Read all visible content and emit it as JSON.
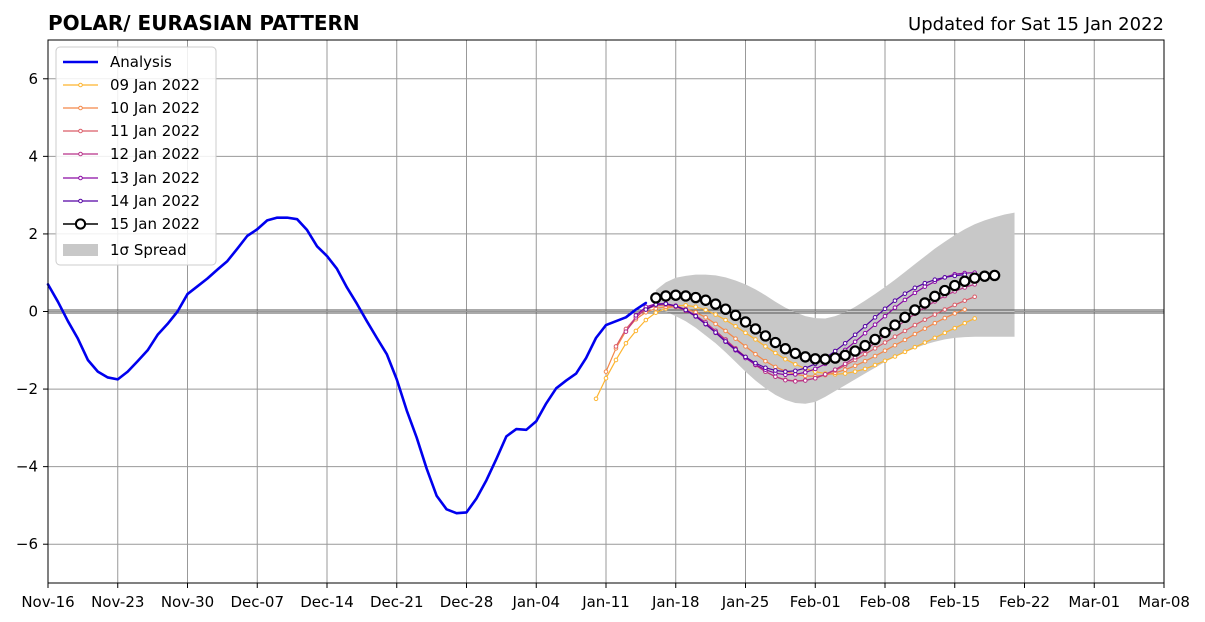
{
  "chart_data": {
    "type": "line",
    "title": "POLAR/ EURASIAN  PATTERN",
    "subtitle": "Updated for Sat 15 Jan 2022",
    "xlabel": "",
    "ylabel": "",
    "xlim": [
      "2021-11-16",
      "2022-03-08"
    ],
    "ylim": [
      -7,
      7
    ],
    "yticks": [
      -6,
      -4,
      -2,
      0,
      2,
      4,
      6
    ],
    "ytick_labels": [
      "−6",
      "−4",
      "−2",
      "0",
      "2",
      "4",
      "6"
    ],
    "xticks": [
      "2021-11-16",
      "2021-11-23",
      "2021-11-30",
      "2021-12-07",
      "2021-12-14",
      "2021-12-21",
      "2021-12-28",
      "2022-01-04",
      "2022-01-11",
      "2022-01-18",
      "2022-01-25",
      "2022-02-01",
      "2022-02-08",
      "2022-02-15",
      "2022-02-22",
      "2022-03-01",
      "2022-03-08"
    ],
    "xtick_labels": [
      "Nov-16",
      "Nov-23",
      "Nov-30",
      "Dec-07",
      "Dec-14",
      "Dec-21",
      "Dec-28",
      "Jan-04",
      "Jan-11",
      "Jan-18",
      "Jan-25",
      "Feb-01",
      "Feb-08",
      "Feb-15",
      "Feb-22",
      "Mar-01",
      "Mar-08"
    ],
    "grid": true,
    "legend_position": "top-left",
    "colors": {
      "analysis": "#0000ee",
      "spread": "#c8c8c8",
      "grid": "#999999",
      "zero_line": "#555555"
    },
    "legend": [
      {
        "label": "Analysis",
        "color": "#0000ee",
        "style": "thick"
      },
      {
        "label": "09 Jan 2022",
        "color": "#fdb42f",
        "style": "small-marker"
      },
      {
        "label": "10 Jan 2022",
        "color": "#f48849",
        "style": "small-marker"
      },
      {
        "label": "11 Jan 2022",
        "color": "#db5c68",
        "style": "small-marker"
      },
      {
        "label": "12 Jan 2022",
        "color": "#b83289",
        "style": "small-marker"
      },
      {
        "label": "13 Jan 2022",
        "color": "#8b0aa5",
        "style": "small-marker"
      },
      {
        "label": "14 Jan 2022",
        "color": "#5402a3",
        "style": "small-marker"
      },
      {
        "label": "15 Jan 2022",
        "color": "#000000",
        "style": "big-marker"
      },
      {
        "label": "1σ Spread",
        "color": "#c8c8c8",
        "style": "patch"
      }
    ],
    "analysis": {
      "name": "Analysis",
      "start": "2021-11-16",
      "values": [
        0.7,
        0.25,
        -0.25,
        -0.7,
        -1.25,
        -1.55,
        -1.7,
        -1.75,
        -1.55,
        -1.28,
        -1.0,
        -0.6,
        -0.32,
        0.0,
        0.45,
        0.65,
        0.85,
        1.08,
        1.3,
        1.62,
        1.95,
        2.12,
        2.35,
        2.42,
        2.42,
        2.38,
        2.1,
        1.68,
        1.43,
        1.1,
        0.62,
        0.2,
        -0.25,
        -0.68,
        -1.1,
        -1.75,
        -2.55,
        -3.25,
        -4.05,
        -4.75,
        -5.1,
        -5.2,
        -5.18,
        -4.82,
        -4.35,
        -3.8,
        -3.22,
        -3.03,
        -3.05,
        -2.83,
        -2.37,
        -1.98,
        -1.78,
        -1.6,
        -1.2,
        -0.68,
        -0.35,
        -0.25,
        -0.15,
        0.05,
        0.22
      ]
    },
    "spread": {
      "name": "1σ Spread",
      "start": "2022-01-16",
      "upper": [
        0.55,
        0.75,
        0.87,
        0.92,
        0.95,
        0.95,
        0.93,
        0.88,
        0.8,
        0.7,
        0.57,
        0.42,
        0.25,
        0.1,
        -0.02,
        -0.12,
        -0.17,
        -0.18,
        -0.12,
        -0.02,
        0.12,
        0.28,
        0.45,
        0.63,
        0.82,
        1.02,
        1.22,
        1.42,
        1.62,
        1.8,
        1.97,
        2.12,
        2.25,
        2.35,
        2.43,
        2.5,
        2.55
      ],
      "lower": [
        0.1,
        0.0,
        -0.12,
        -0.25,
        -0.42,
        -0.62,
        -0.82,
        -1.05,
        -1.3,
        -1.55,
        -1.78,
        -1.98,
        -2.15,
        -2.28,
        -2.36,
        -2.38,
        -2.33,
        -2.2,
        -2.05,
        -1.9,
        -1.75,
        -1.6,
        -1.45,
        -1.3,
        -1.17,
        -1.05,
        -0.95,
        -0.85,
        -0.78,
        -0.72,
        -0.68,
        -0.66,
        -0.65,
        -0.65,
        -0.65,
        -0.65,
        -0.65
      ]
    },
    "forecasts": [
      {
        "name": "09 Jan 2022",
        "start": "2022-01-10",
        "color": "#fdb42f",
        "values": [
          -2.25,
          -1.72,
          -1.25,
          -0.82,
          -0.5,
          -0.22,
          -0.03,
          0.08,
          0.14,
          0.16,
          0.12,
          0.04,
          -0.08,
          -0.22,
          -0.38,
          -0.55,
          -0.72,
          -0.9,
          -1.07,
          -1.23,
          -1.36,
          -1.47,
          -1.55,
          -1.6,
          -1.62,
          -1.6,
          -1.55,
          -1.48,
          -1.38,
          -1.27,
          -1.16,
          -1.04,
          -0.92,
          -0.8,
          -0.68,
          -0.55,
          -0.43,
          -0.3,
          -0.18
        ]
      },
      {
        "name": "10 Jan 2022",
        "start": "2022-01-11",
        "color": "#f48849",
        "values": [
          -1.55,
          -0.95,
          -0.5,
          -0.2,
          -0.02,
          0.08,
          0.12,
          0.12,
          0.07,
          -0.02,
          -0.15,
          -0.32,
          -0.5,
          -0.7,
          -0.9,
          -1.1,
          -1.28,
          -1.43,
          -1.54,
          -1.62,
          -1.66,
          -1.67,
          -1.64,
          -1.58,
          -1.5,
          -1.4,
          -1.28,
          -1.15,
          -1.01,
          -0.87,
          -0.73,
          -0.58,
          -0.44,
          -0.3,
          -0.17,
          -0.05,
          0.05
        ]
      },
      {
        "name": "11 Jan 2022",
        "start": "2022-01-12",
        "color": "#db5c68",
        "values": [
          -0.9,
          -0.45,
          -0.15,
          0.05,
          0.15,
          0.17,
          0.12,
          0.02,
          -0.12,
          -0.3,
          -0.5,
          -0.72,
          -0.95,
          -1.17,
          -1.38,
          -1.55,
          -1.68,
          -1.76,
          -1.79,
          -1.77,
          -1.72,
          -1.63,
          -1.52,
          -1.39,
          -1.25,
          -1.1,
          -0.95,
          -0.8,
          -0.65,
          -0.5,
          -0.35,
          -0.21,
          -0.08,
          0.05,
          0.17,
          0.28,
          0.38
        ]
      },
      {
        "name": "12 Jan 2022",
        "start": "2022-01-13",
        "color": "#b83289",
        "values": [
          -0.52,
          -0.15,
          0.08,
          0.18,
          0.2,
          0.15,
          0.05,
          -0.1,
          -0.28,
          -0.5,
          -0.73,
          -0.96,
          -1.18,
          -1.38,
          -1.55,
          -1.68,
          -1.77,
          -1.8,
          -1.78,
          -1.72,
          -1.62,
          -1.5,
          -1.35,
          -1.18,
          -1.0,
          -0.81,
          -0.62,
          -0.43,
          -0.24,
          -0.06,
          0.11,
          0.26,
          0.4,
          0.52,
          0.62,
          0.7
        ]
      },
      {
        "name": "13 Jan 2022",
        "start": "2022-01-14",
        "color": "#8b0aa5",
        "values": [
          -0.1,
          0.12,
          0.2,
          0.2,
          0.14,
          0.03,
          -0.13,
          -0.33,
          -0.55,
          -0.78,
          -1.0,
          -1.2,
          -1.37,
          -1.5,
          -1.59,
          -1.63,
          -1.62,
          -1.57,
          -1.48,
          -1.35,
          -1.18,
          -0.99,
          -0.78,
          -0.56,
          -0.34,
          -0.12,
          0.1,
          0.3,
          0.48,
          0.64,
          0.77,
          0.88,
          0.96,
          0.99,
          1.0
        ]
      },
      {
        "name": "14 Jan 2022",
        "start": "2022-01-15",
        "color": "#5402a3",
        "values": [
          0.05,
          0.18,
          0.2,
          0.14,
          0.04,
          -0.12,
          -0.32,
          -0.54,
          -0.77,
          -0.98,
          -1.17,
          -1.33,
          -1.45,
          -1.52,
          -1.55,
          -1.53,
          -1.46,
          -1.35,
          -1.2,
          -1.02,
          -0.82,
          -0.6,
          -0.38,
          -0.15,
          0.07,
          0.28,
          0.46,
          0.61,
          0.73,
          0.82,
          0.88,
          0.92,
          0.95
        ]
      },
      {
        "name": "15 Jan 2022",
        "start": "2022-01-16",
        "color": "#000000",
        "values": [
          0.35,
          0.4,
          0.42,
          0.4,
          0.36,
          0.29,
          0.19,
          0.06,
          -0.1,
          -0.27,
          -0.45,
          -0.63,
          -0.8,
          -0.96,
          -1.08,
          -1.17,
          -1.22,
          -1.23,
          -1.2,
          -1.13,
          -1.02,
          -0.88,
          -0.72,
          -0.54,
          -0.35,
          -0.15,
          0.04,
          0.22,
          0.39,
          0.54,
          0.67,
          0.78,
          0.86,
          0.91,
          0.93
        ]
      }
    ]
  }
}
